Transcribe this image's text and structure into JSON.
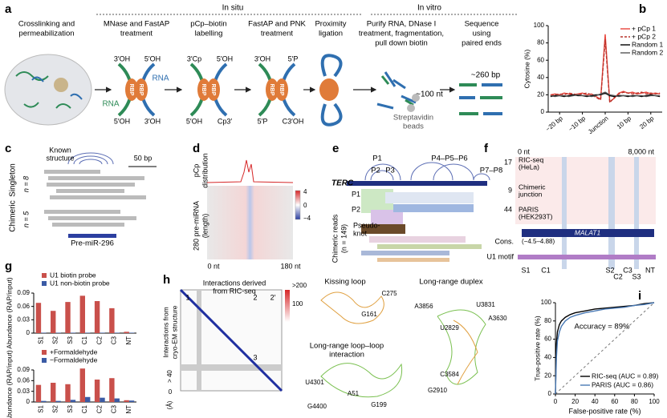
{
  "panel_labels": [
    "a",
    "b",
    "c",
    "d",
    "e",
    "f",
    "g",
    "h",
    "i"
  ],
  "a": {
    "in_situ": "In situ",
    "in_vitro": "In vitro",
    "steps": [
      [
        "Crosslinking and",
        "permeabilization"
      ],
      [
        "MNase and FastAP",
        "treatment"
      ],
      [
        "pCp–biotin",
        "labelling"
      ],
      [
        "FastAP and PNK",
        "treatment"
      ],
      [
        "Proximity",
        "ligation"
      ],
      [
        "Purify RNA, DNase I",
        "treatment, fragmentation,",
        "pull down biotin"
      ],
      [
        "Sequence",
        "using",
        "paired ends"
      ]
    ],
    "rbp": "RBP",
    "mnase_ends": [
      "3′OH",
      "5′OH",
      "5′OH",
      "3′OH"
    ],
    "rna": [
      "RNA",
      "RNA"
    ],
    "pcp_ends": [
      "3′Cp",
      "5′OH",
      "5′OH",
      "Cp3′"
    ],
    "pnk_ends": [
      "3′OH",
      "5′P",
      "5′P",
      "C3′OH"
    ],
    "read_length": "~260 bp",
    "fragment_length": "~100 nt",
    "beads": [
      "Streptavidin",
      "beads"
    ]
  },
  "c": {
    "known": [
      "Known",
      "structure"
    ],
    "scale": "50 bp",
    "group": [
      "Chimeric",
      "Singleton"
    ],
    "n": [
      "n = 8",
      "n = 5"
    ],
    "rna": "Pre-miR-296"
  },
  "d": {
    "top_axis": [
      "pCp",
      "distribution"
    ],
    "left_axis": [
      "280 pre-miRNA",
      "(length)"
    ],
    "colorbar": [
      "4",
      "0",
      "−4"
    ],
    "x": [
      "0 nt",
      "180 nt"
    ]
  },
  "e": {
    "domains": [
      "P1",
      "P2",
      "P3",
      "P4–P5–P6",
      "P7–P8"
    ],
    "rna": "TERC",
    "helices": [
      "P1",
      "P2"
    ],
    "pseudoknot": [
      "Pseudo-",
      "knot"
    ],
    "reads": [
      "Chimeric reads",
      "(n = 149)"
    ]
  },
  "f": {
    "x": [
      "0 nt",
      "8,000 nt"
    ],
    "tracks": [
      {
        "max": "17",
        "name": [
          "RIC-seq",
          "(HeLa)"
        ]
      },
      {
        "max": "9",
        "name": [
          "Chimeric",
          "junction"
        ]
      },
      {
        "max": "44",
        "name": [
          "PARIS",
          "(HEK293T)"
        ]
      }
    ],
    "rna": "MALAT1",
    "cons": "Cons.",
    "cons_range": "(−4.5–4.88)",
    "motif": "U1 motif",
    "sites": [
      "S1",
      "C1",
      "S2",
      "C2",
      "C3",
      "S3",
      "NT"
    ]
  },
  "h": {
    "title": [
      "Interactions derived",
      "from RIC-seq"
    ],
    "left": [
      "Interactions from",
      "cryo-EM structure"
    ],
    "colorbar": [
      ">200",
      "100"
    ],
    "distance": [
      "> 40",
      "0",
      "(Å)"
    ],
    "regions": [
      "1",
      "2",
      "2′",
      "3"
    ],
    "kissing": {
      "title": "Kissing loop",
      "residues": [
        "G161",
        "C275"
      ]
    },
    "loop_loop": {
      "title": [
        "Long-range loop–loop",
        "interaction"
      ],
      "residues": [
        "U4301",
        "A51",
        "G4400",
        "G199"
      ]
    },
    "duplex": {
      "title": "Long-range duplex",
      "residues": [
        "A3856",
        "U3831",
        "U2829",
        "A3630",
        "C3584",
        "G2910"
      ]
    }
  },
  "chart_data": [
    {
      "type": "line",
      "ylabel": "Cytosine (%)",
      "xlim": [
        -25,
        25
      ],
      "ylim": [
        0,
        100
      ],
      "yticks": [
        0,
        20,
        40,
        60,
        80,
        100
      ],
      "xticks": [
        {
          "value": -20,
          "label": "−20 bp"
        },
        {
          "value": -10,
          "label": "−10 bp"
        },
        {
          "value": 0,
          "label": "Junction"
        },
        {
          "value": 10,
          "label": "10 bp"
        },
        {
          "value": 20,
          "label": "20 bp"
        }
      ],
      "x": [
        -24,
        -22,
        -20,
        -18,
        -16,
        -14,
        -12,
        -10,
        -8,
        -6,
        -4,
        -2,
        0,
        2,
        4,
        6,
        8,
        10,
        12,
        14,
        16,
        18,
        20,
        22,
        24
      ],
      "legend": "upper right",
      "series": [
        {
          "name": "+ pCp 1",
          "color": "#e8453c",
          "values": [
            20,
            21,
            20,
            22,
            21,
            20,
            21,
            22,
            20,
            21,
            18,
            15,
            90,
            12,
            16,
            22,
            24,
            22,
            23,
            21,
            22,
            23,
            21,
            22,
            21
          ]
        },
        {
          "name": "+ pCp 2",
          "color": "#b8322a",
          "line_style": "dashed",
          "values": [
            19,
            20,
            21,
            20,
            22,
            21,
            20,
            21,
            22,
            20,
            17,
            14,
            84,
            11,
            17,
            21,
            23,
            22,
            21,
            22,
            23,
            21,
            22,
            21,
            22
          ]
        },
        {
          "name": "Random 1",
          "color": "#000000",
          "values": [
            18,
            19,
            19,
            18,
            19,
            20,
            19,
            19,
            18,
            19,
            20,
            20,
            22,
            19,
            18,
            19,
            19,
            18,
            19,
            19,
            18,
            19,
            20,
            19,
            18
          ]
        },
        {
          "name": "Random 2",
          "color": "#555555",
          "values": [
            19,
            18,
            19,
            19,
            18,
            19,
            20,
            19,
            19,
            18,
            19,
            21,
            23,
            20,
            19,
            18,
            19,
            19,
            18,
            19,
            19,
            18,
            19,
            19,
            19
          ]
        }
      ]
    },
    {
      "type": "bar",
      "ylabel": "Abundance (RAP/input)",
      "categories": [
        "S1",
        "S2",
        "S3",
        "C1",
        "C2",
        "C3",
        "NT"
      ],
      "ylim": [
        0,
        0.09
      ],
      "yticks": [
        0,
        0.03,
        0.06,
        0.09
      ],
      "legend": "top",
      "series": [
        {
          "name": "U1 biotin probe",
          "color": "#c9504b",
          "values": [
            0.068,
            0.05,
            0.07,
            0.084,
            0.072,
            0.056,
            0.003
          ]
        },
        {
          "name": "U1 non-biotin probe",
          "color": "#3b5ba5",
          "values": [
            0.001,
            0.001,
            0.001,
            0.001,
            0.001,
            0.001,
            0.001
          ]
        }
      ]
    },
    {
      "type": "bar",
      "ylabel": "Abundance (RAP/input)",
      "categories": [
        "S1",
        "S2",
        "S3",
        "C1",
        "C2",
        "C3",
        "NT"
      ],
      "ylim": [
        0,
        0.09
      ],
      "yticks": [
        0,
        0.03,
        0.06,
        0.09
      ],
      "legend": "top",
      "series": [
        {
          "name": "+Formaldehyde",
          "color": "#c9504b",
          "values": [
            0.048,
            0.054,
            0.05,
            0.094,
            0.063,
            0.067,
            0.005
          ]
        },
        {
          "name": "−Formaldehyde",
          "color": "#3b5ba5",
          "values": [
            0.003,
            0.003,
            0.006,
            0.014,
            0.012,
            0.01,
            0.004
          ]
        }
      ]
    },
    {
      "type": "line",
      "xlabel": "False-positive rate (%)",
      "ylabel": "True-positive rate (%)",
      "xlim": [
        0,
        100
      ],
      "ylim": [
        0,
        100
      ],
      "xticks": [
        0,
        20,
        40,
        60,
        80,
        100
      ],
      "yticks": [
        0,
        20,
        40,
        60,
        80,
        100
      ],
      "annotation": "Accuracy = 89%",
      "legend": "lower right",
      "series": [
        {
          "name": "RIC-seq (AUC = 0.89)",
          "color": "#000000",
          "x": [
            0,
            1,
            2,
            4,
            6,
            10,
            15,
            20,
            30,
            40,
            50,
            60,
            70,
            80,
            90,
            100
          ],
          "values": [
            0,
            55,
            68,
            76,
            80,
            84,
            87,
            89,
            91,
            93,
            94,
            95,
            96,
            97,
            99,
            100
          ]
        },
        {
          "name": "PARIS (AUC = 0.86)",
          "color": "#4a7ab5",
          "x": [
            0,
            1,
            2,
            4,
            6,
            10,
            15,
            20,
            30,
            40,
            50,
            60,
            70,
            80,
            90,
            100
          ],
          "values": [
            0,
            40,
            58,
            68,
            74,
            80,
            84,
            86,
            89,
            91,
            93,
            94,
            95,
            97,
            98,
            100
          ]
        }
      ]
    }
  ]
}
